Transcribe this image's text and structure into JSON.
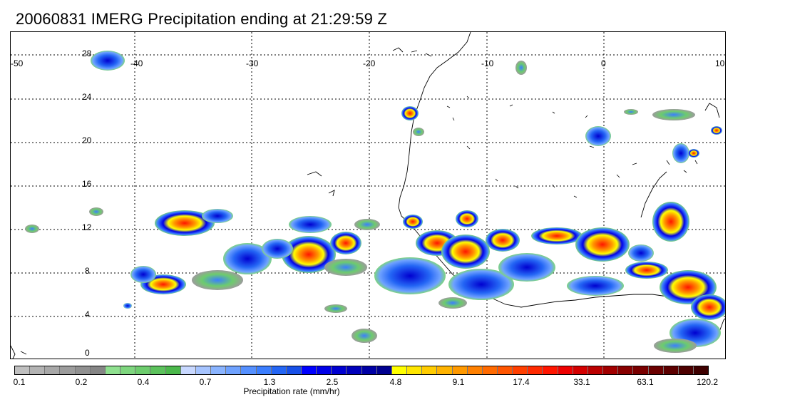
{
  "title": "20060831 IMERG Precipitation ending at 21:29:59 Z",
  "map": {
    "lon_range": [
      -50,
      10
    ],
    "lat_range": [
      -1,
      28.5
    ],
    "lon_ticks": [
      "-50",
      "-40",
      "-30",
      "-20",
      "-10",
      "0",
      "10"
    ],
    "lat_ticks": [
      "28",
      "24",
      "20",
      "16",
      "12",
      "8",
      "4",
      "0"
    ],
    "gridlines": "dotted"
  },
  "colorbar": {
    "title": "Precipitation rate (mm/hr)",
    "labels": [
      "0.1",
      "0.2",
      "0.4",
      "0.7",
      "1.3",
      "2.5",
      "4.8",
      "9.1",
      "17.4",
      "33.1",
      "63.1",
      "120.2"
    ],
    "colors": [
      "#bfbfbf",
      "#b3b3b3",
      "#a8a8a8",
      "#9c9c9c",
      "#909090",
      "#858585",
      "#8fe08f",
      "#7ed67e",
      "#6dcc6d",
      "#5cc25c",
      "#4bb84b",
      "#c8d8ff",
      "#a6c4ff",
      "#8ab4ff",
      "#6fa2ff",
      "#5590ff",
      "#3b7eff",
      "#2466f5",
      "#1750e8",
      "#0000ff",
      "#0000e8",
      "#0000d1",
      "#0000bb",
      "#0000a5",
      "#000090",
      "#ffff00",
      "#ffe600",
      "#ffcc00",
      "#ffb300",
      "#ff9900",
      "#ff8000",
      "#ff6a00",
      "#ff5500",
      "#ff3f00",
      "#ff2a00",
      "#ff1500",
      "#ee0000",
      "#d40000",
      "#bb0000",
      "#a20000",
      "#880000",
      "#7a0000",
      "#6b0000",
      "#5c0000",
      "#4d0000",
      "#3e0000"
    ]
  }
}
